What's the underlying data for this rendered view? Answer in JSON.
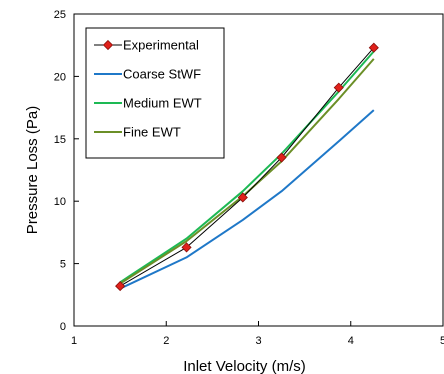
{
  "chart_data": {
    "type": "line",
    "title": "",
    "xlabel": "Inlet Velocity (m/s)",
    "ylabel": "Pressure Loss (Pa)",
    "xlim": [
      1,
      5
    ],
    "ylim": [
      0,
      25
    ],
    "xticks": [
      1,
      2,
      3,
      4,
      5
    ],
    "yticks": [
      0,
      5,
      10,
      15,
      20,
      25
    ],
    "xtick_labels": [
      "1",
      "2",
      "3",
      "4",
      "5"
    ],
    "ytick_labels": [
      "0",
      "5",
      "10",
      "15",
      "20",
      "25"
    ],
    "grid": false,
    "legend_position": "top-left",
    "series": [
      {
        "name": "Experimental",
        "color": "#000000",
        "marker": "diamond",
        "marker_color": "#e0211b",
        "x": [
          1.5,
          2.22,
          2.83,
          3.25,
          3.87,
          4.25
        ],
        "y": [
          3.2,
          6.3,
          10.3,
          13.5,
          19.1,
          22.3
        ]
      },
      {
        "name": "Coarse StWF",
        "color": "#1f78c8",
        "marker": "none",
        "x": [
          1.5,
          2.22,
          2.83,
          3.25,
          3.87,
          4.25
        ],
        "y": [
          3.0,
          5.5,
          8.5,
          10.8,
          14.8,
          17.3
        ]
      },
      {
        "name": "Medium EWT",
        "color": "#1db954",
        "marker": "none",
        "x": [
          1.5,
          2.22,
          2.83,
          3.25,
          3.87,
          4.25
        ],
        "y": [
          3.5,
          7.0,
          10.8,
          13.8,
          18.8,
          22.0
        ]
      },
      {
        "name": "Fine EWT",
        "color": "#6b8f27",
        "marker": "none",
        "x": [
          1.5,
          2.22,
          2.83,
          3.25,
          3.87,
          4.25
        ],
        "y": [
          3.4,
          6.8,
          10.4,
          13.2,
          18.2,
          21.4
        ]
      }
    ]
  }
}
